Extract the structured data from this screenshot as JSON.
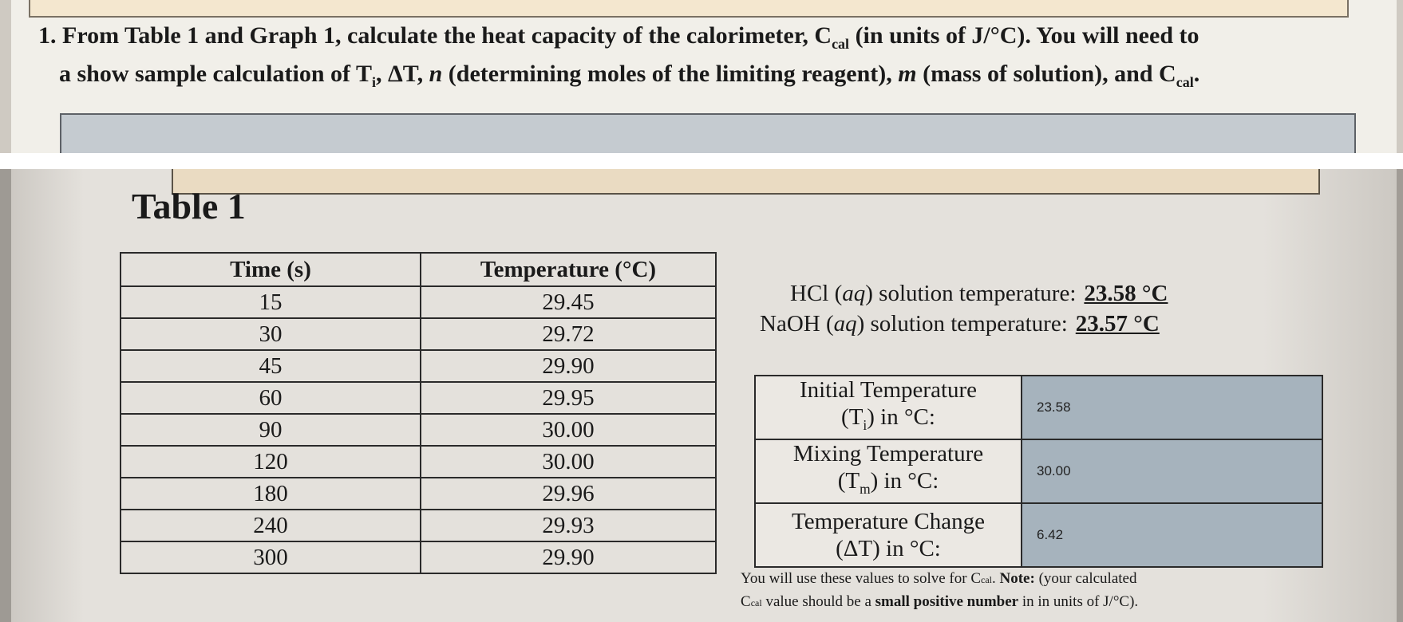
{
  "question": {
    "number": "1.",
    "line1": "From Table 1 and Graph 1, calculate the heat capacity of the calorimeter, C",
    "line1_sub": "cal",
    "line1_end": " (in units of J/°C). You will need to",
    "line2_start": "a show sample calculation of T",
    "line2_sub": "i",
    "line2_mid": ", ΔT, ",
    "line2_n": "n",
    "line2_mid2": " (determining moles of the limiting reagent), ",
    "line2_m": "m",
    "line2_end": " (mass of solution), and C",
    "line2_end_sub": "cal",
    "line2_period": "."
  },
  "table1": {
    "title": "Table 1",
    "headers": [
      "Time (s)",
      "Temperature (°C)"
    ],
    "rows": [
      [
        "15",
        "29.45"
      ],
      [
        "30",
        "29.72"
      ],
      [
        "45",
        "29.90"
      ],
      [
        "60",
        "29.95"
      ],
      [
        "90",
        "30.00"
      ],
      [
        "120",
        "30.00"
      ],
      [
        "180",
        "29.96"
      ],
      [
        "240",
        "29.93"
      ],
      [
        "300",
        "29.90"
      ]
    ]
  },
  "solutions": {
    "hcl_label_a": "HCl (",
    "hcl_label_aq": "aq",
    "hcl_label_b": ") solution temperature:",
    "hcl_value": "23.58 °C",
    "naoh_label_a": "NaOH (",
    "naoh_label_aq": "aq",
    "naoh_label_b": ") solution temperature:",
    "naoh_value": "23.57 °C"
  },
  "temps": [
    {
      "line1": "Initial Temperature",
      "line2a": "(T",
      "line2sub": "i",
      "line2b": ") in °C:",
      "value": "23.58"
    },
    {
      "line1": "Mixing Temperature",
      "line2a": "(T",
      "line2sub": "m",
      "line2b": ") in °C:",
      "value": "30.00"
    },
    {
      "line1": "Temperature Change",
      "line2a": "(ΔT) in °C:",
      "line2sub": "",
      "line2b": "",
      "value": "6.42"
    }
  ],
  "note": {
    "a": "You will use these values to solve for C",
    "a_sub": "cal",
    "b": ". ",
    "note_label": "Note:",
    "c": " (your calculated",
    "d": "C",
    "d_sub": "cal",
    "e": " value should be a ",
    "bold": "small positive number",
    "f": " in in units of J/°C)."
  }
}
